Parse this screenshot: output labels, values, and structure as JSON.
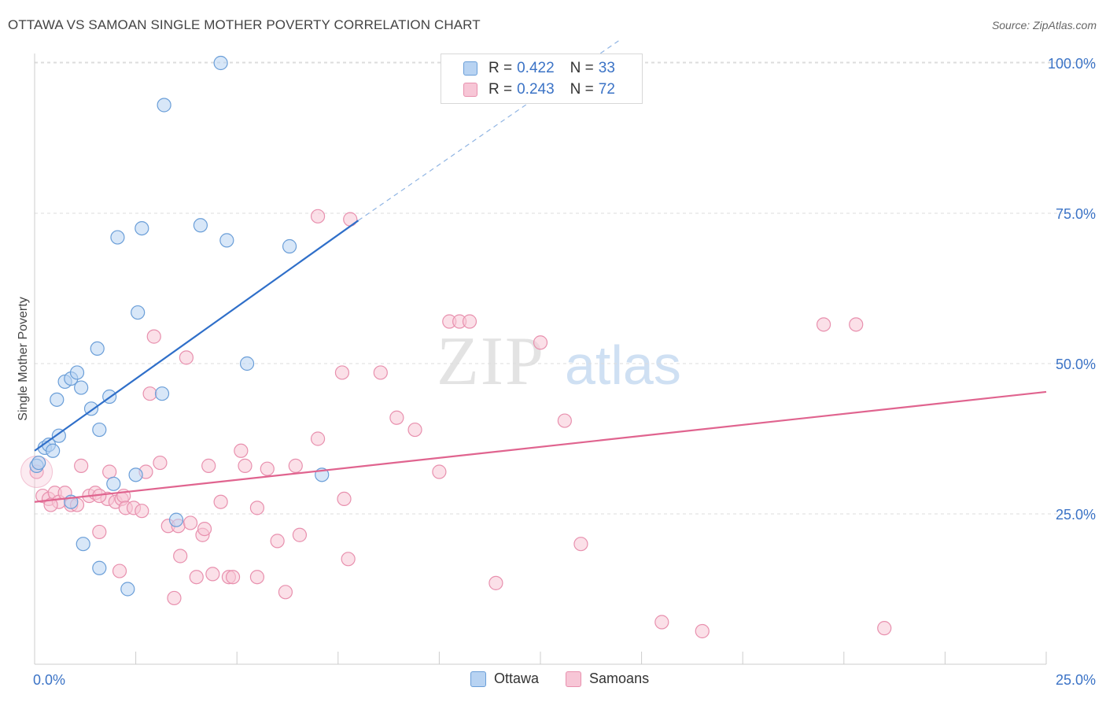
{
  "header": {
    "title": "OTTAWA VS SAMOAN SINGLE MOTHER POVERTY CORRELATION CHART",
    "source": "Source: ZipAtlas.com"
  },
  "watermark": {
    "zip": "ZIP",
    "atlas": "atlas"
  },
  "legend": {
    "ottawa": {
      "r_label": "R =",
      "r_value": "0.422",
      "n_label": "N =",
      "n_value": "33"
    },
    "samoans": {
      "r_label": "R =",
      "r_value": "0.243",
      "n_label": "N =",
      "n_value": "72"
    }
  },
  "colors": {
    "ottawa_fill": "#b8d3f2",
    "ottawa_stroke": "#6a9ed8",
    "ottawa_line": "#2f6fc9",
    "samoan_fill": "#f7c6d6",
    "samoan_stroke": "#e890ae",
    "samoan_line": "#e0648f",
    "axis_label": "#3b73c6",
    "grid": "#dddddd"
  },
  "chart_data": {
    "type": "scatter",
    "title": "OTTAWA VS SAMOAN SINGLE MOTHER POVERTY CORRELATION CHART",
    "ylabel": "Single Mother Poverty",
    "xlabel": "",
    "xlim": [
      0,
      25
    ],
    "ylim": [
      0,
      102
    ],
    "x_tick_labels": {
      "min": "0.0%",
      "max": "25.0%"
    },
    "y_ticks": [
      {
        "value": 25,
        "label": "25.0%"
      },
      {
        "value": 50,
        "label": "50.0%"
      },
      {
        "value": 75,
        "label": "75.0%"
      },
      {
        "value": 100,
        "label": "100.0%"
      }
    ],
    "grid": true,
    "legend_position": "top-center",
    "series": [
      {
        "name": "Ottawa",
        "points": [
          [
            0.05,
            33
          ],
          [
            0.1,
            33.5
          ],
          [
            0.25,
            36
          ],
          [
            0.35,
            36.5
          ],
          [
            0.45,
            35.5
          ],
          [
            0.6,
            38
          ],
          [
            0.55,
            44
          ],
          [
            0.75,
            47
          ],
          [
            0.9,
            47.5
          ],
          [
            1.05,
            48.5
          ],
          [
            1.15,
            46
          ],
          [
            1.4,
            42.5
          ],
          [
            1.55,
            52.5
          ],
          [
            1.85,
            44.5
          ],
          [
            1.6,
            39
          ],
          [
            1.95,
            30
          ],
          [
            2.05,
            71
          ],
          [
            2.55,
            58.5
          ],
          [
            2.65,
            72.5
          ],
          [
            2.5,
            31.5
          ],
          [
            3.2,
            93
          ],
          [
            3.15,
            45
          ],
          [
            3.5,
            24
          ],
          [
            4.1,
            73
          ],
          [
            4.6,
            100
          ],
          [
            4.75,
            70.5
          ],
          [
            5.25,
            50
          ],
          [
            6.3,
            69.5
          ],
          [
            7.1,
            31.5
          ],
          [
            0.9,
            27
          ],
          [
            1.2,
            20
          ],
          [
            1.6,
            16
          ],
          [
            2.3,
            12.5
          ]
        ],
        "trend": {
          "x": [
            0,
            8
          ],
          "y": [
            35.5,
            73.8
          ]
        },
        "trend_extension": {
          "x": [
            8,
            14.5
          ],
          "y": [
            73.8,
            104
          ]
        }
      },
      {
        "name": "Samoans",
        "points": [
          [
            0.05,
            32
          ],
          [
            0.2,
            28
          ],
          [
            0.35,
            27.5
          ],
          [
            0.5,
            28.5
          ],
          [
            0.6,
            27
          ],
          [
            0.75,
            28.5
          ],
          [
            0.9,
            26.5
          ],
          [
            1.05,
            26.5
          ],
          [
            1.15,
            33
          ],
          [
            1.35,
            28
          ],
          [
            1.5,
            28.5
          ],
          [
            1.6,
            22
          ],
          [
            1.8,
            27.5
          ],
          [
            1.85,
            32
          ],
          [
            2.0,
            27
          ],
          [
            2.15,
            27.5
          ],
          [
            2.2,
            28
          ],
          [
            2.25,
            26
          ],
          [
            2.45,
            26
          ],
          [
            2.65,
            25.5
          ],
          [
            2.75,
            32
          ],
          [
            2.85,
            45
          ],
          [
            2.95,
            54.5
          ],
          [
            3.1,
            33.5
          ],
          [
            3.3,
            23
          ],
          [
            3.45,
            11
          ],
          [
            3.55,
            23
          ],
          [
            3.6,
            18
          ],
          [
            3.75,
            51
          ],
          [
            3.85,
            23.5
          ],
          [
            4.0,
            14.5
          ],
          [
            4.15,
            21.5
          ],
          [
            4.2,
            22.5
          ],
          [
            4.3,
            33
          ],
          [
            4.4,
            15
          ],
          [
            4.6,
            27
          ],
          [
            4.8,
            14.5
          ],
          [
            4.9,
            14.5
          ],
          [
            5.1,
            35.5
          ],
          [
            5.2,
            33
          ],
          [
            5.5,
            26
          ],
          [
            5.75,
            32.5
          ],
          [
            6.0,
            20.5
          ],
          [
            6.2,
            12
          ],
          [
            6.45,
            33
          ],
          [
            6.55,
            21.5
          ],
          [
            7.0,
            74.5
          ],
          [
            7.0,
            37.5
          ],
          [
            7.6,
            48.5
          ],
          [
            7.65,
            27.5
          ],
          [
            7.75,
            17.5
          ],
          [
            7.8,
            74
          ],
          [
            8.55,
            48.5
          ],
          [
            8.95,
            41
          ],
          [
            9.4,
            39
          ],
          [
            10.0,
            32
          ],
          [
            10.25,
            57
          ],
          [
            10.5,
            57
          ],
          [
            10.75,
            57
          ],
          [
            11.4,
            13.5
          ],
          [
            12.5,
            53.5
          ],
          [
            13.1,
            40.5
          ],
          [
            13.5,
            20
          ],
          [
            15.5,
            7
          ],
          [
            16.5,
            5.5
          ],
          [
            19.5,
            56.5
          ],
          [
            20.3,
            56.5
          ],
          [
            21.0,
            6
          ],
          [
            1.6,
            28
          ],
          [
            2.1,
            15.5
          ],
          [
            0.4,
            26.5
          ],
          [
            5.5,
            14.5
          ]
        ],
        "trend": {
          "x": [
            0,
            25
          ],
          "y": [
            27,
            45.3
          ]
        }
      }
    ]
  },
  "bottom_legend": [
    {
      "label": "Ottawa"
    },
    {
      "label": "Samoans"
    }
  ]
}
